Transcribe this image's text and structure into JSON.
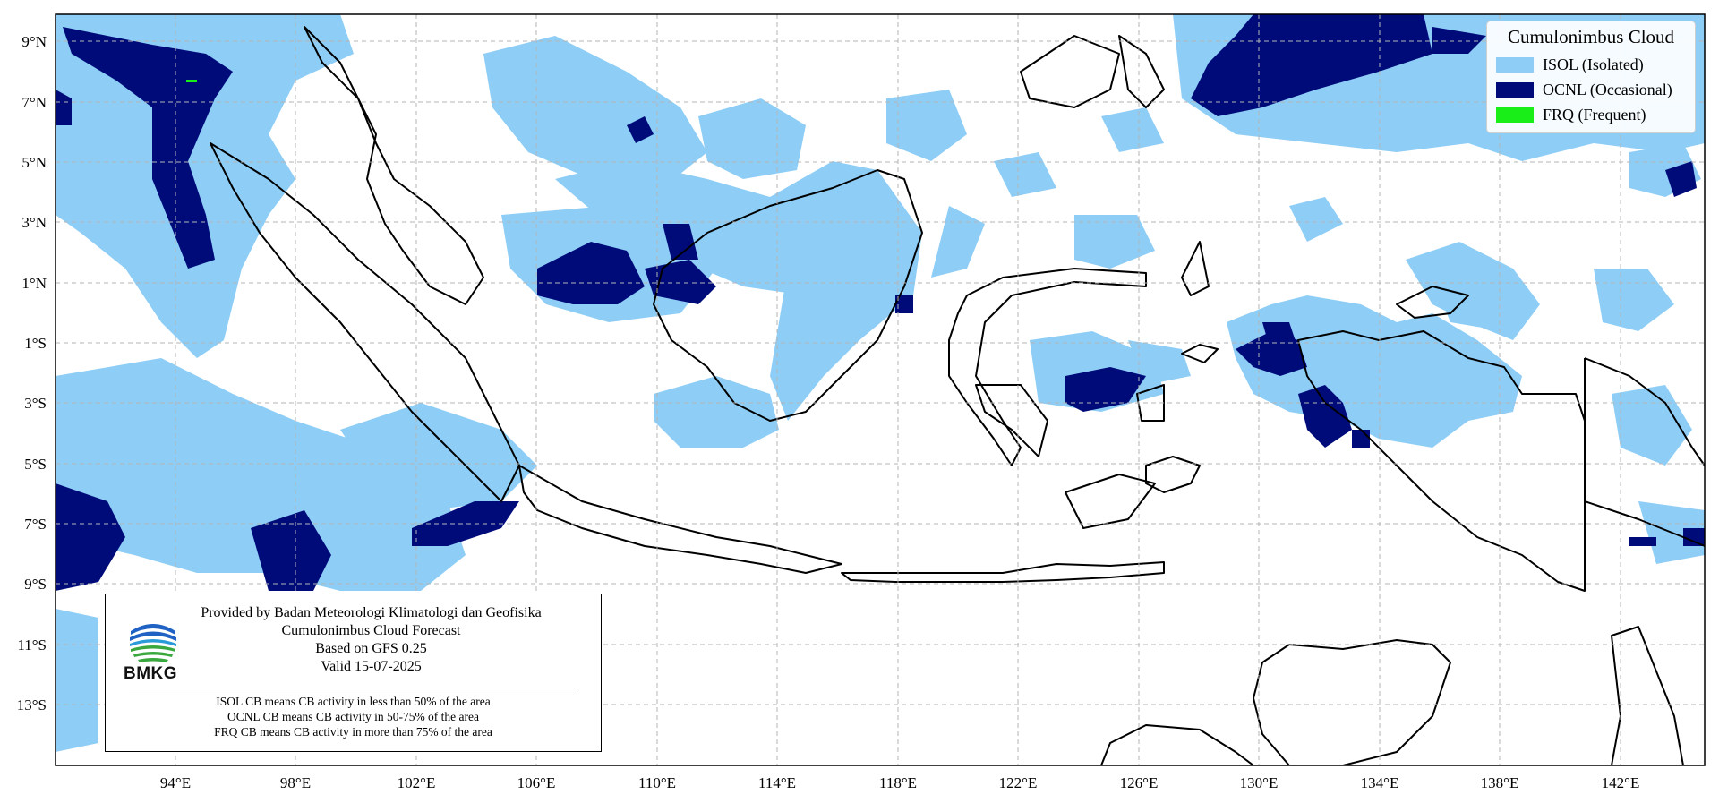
{
  "map": {
    "lat_labels": [
      "9°N",
      "7°N",
      "5°N",
      "3°N",
      "1°N",
      "1°S",
      "3°S",
      "5°S",
      "7°S",
      "9°S",
      "11°S",
      "13°S"
    ],
    "lon_labels": [
      "94°E",
      "98°E",
      "102°E",
      "106°E",
      "110°E",
      "114°E",
      "118°E",
      "122°E",
      "126°E",
      "130°E",
      "134°E",
      "138°E",
      "142°E"
    ],
    "colors": {
      "isol": "#8dcdf6",
      "ocnl": "#000b7a",
      "frq": "#19ee19",
      "land_outline": "#000000",
      "grid": "#b5b5b5"
    }
  },
  "legend": {
    "title": "Cumulonimbus Cloud",
    "items": [
      {
        "label": "ISOL (Isolated)",
        "color": "#8dcdf6"
      },
      {
        "label": "OCNL (Occasional)",
        "color": "#000b7a"
      },
      {
        "label": "FRQ (Frequent)",
        "color": "#19ee19"
      }
    ]
  },
  "info": {
    "provider": "Provided by Badan Meteorologi Klimatologi dan Geofisika",
    "product": "Cumulonimbus Cloud Forecast",
    "based_on": "Based on GFS 0.25",
    "valid": "Valid 15-07-2025",
    "logo_text": "BMKG",
    "notes": [
      "ISOL CB means CB activity in less than 50% of the area",
      "OCNL CB means CB activity in 50-75% of the area",
      "FRQ CB means CB activity in more than 75% of the area"
    ]
  }
}
